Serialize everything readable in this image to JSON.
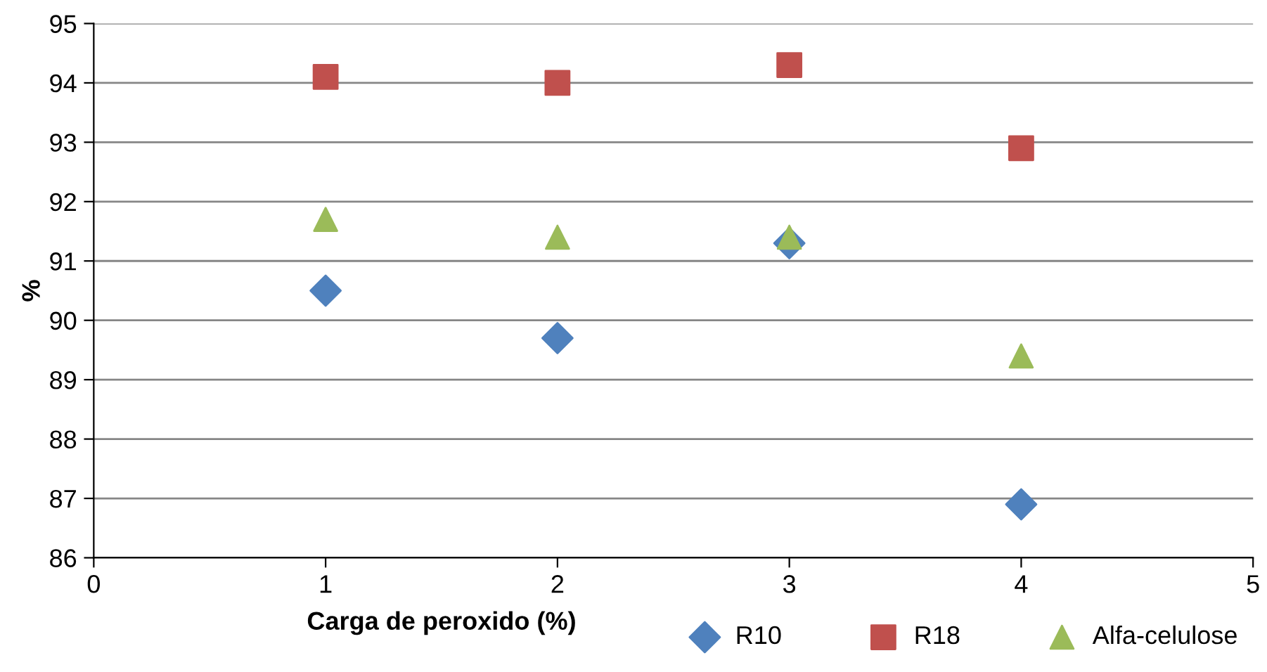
{
  "chart_data": {
    "type": "scatter",
    "xlabel": "Carga de peroxido (%)",
    "ylabel": "%",
    "x": [
      1,
      2,
      3,
      4
    ],
    "series": [
      {
        "name": "R10",
        "color": "#4f81bd",
        "marker": "diamond",
        "values": [
          90.5,
          89.7,
          91.3,
          86.9
        ]
      },
      {
        "name": "R18",
        "color": "#c0504d",
        "marker": "square",
        "values": [
          94.1,
          94.0,
          94.3,
          92.9
        ]
      },
      {
        "name": "Alfa-celulose",
        "color": "#9bbb59",
        "marker": "triangle",
        "values": [
          91.7,
          91.4,
          91.4,
          89.4
        ]
      }
    ],
    "xlim": [
      0,
      5
    ],
    "xticks": [
      0,
      1,
      2,
      3,
      4,
      5
    ],
    "ylim": [
      86,
      95
    ],
    "yticks": [
      86,
      87,
      88,
      89,
      90,
      91,
      92,
      93,
      94,
      95
    ],
    "grid": "y",
    "legend": "bottom right"
  }
}
